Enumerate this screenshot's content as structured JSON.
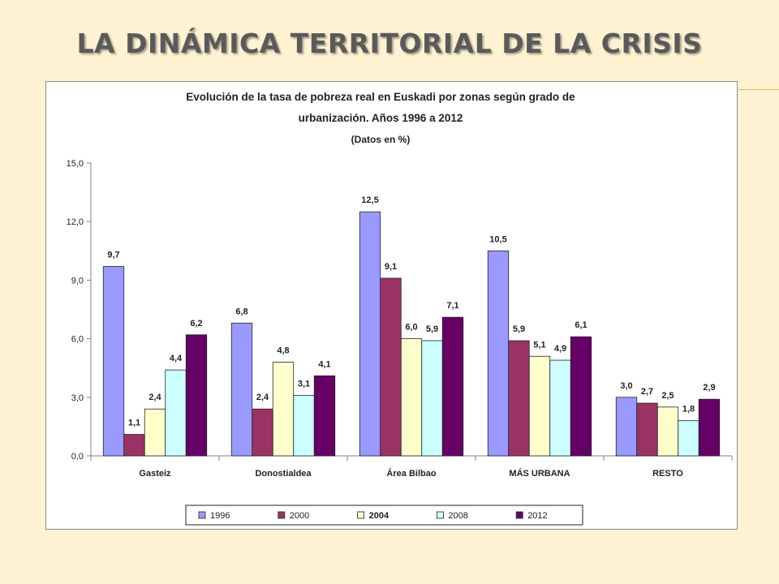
{
  "slide": {
    "title": "LA DINÁMICA TERRITORIAL DE LA CRISIS"
  },
  "colors": {
    "background": "#fdf2d1",
    "accent": "#e7b85a"
  },
  "chart_data": {
    "type": "bar",
    "title_line1": "Evolución de la tasa de pobreza real en Euskadi por zonas según grado de",
    "title_line2": "urbanización. Años 1996 a 2012",
    "subtitle": "(Datos en %)",
    "categories": [
      "Gasteiz",
      "Donostialdea",
      "Área Bilbao",
      "MÁS URBANA",
      "RESTO"
    ],
    "series": [
      {
        "name": "1996",
        "color": "#9999ff",
        "values": [
          9.7,
          6.8,
          12.5,
          10.5,
          3.0
        ]
      },
      {
        "name": "2000",
        "color": "#993366",
        "values": [
          1.1,
          2.4,
          9.1,
          5.9,
          2.7
        ]
      },
      {
        "name": "2004",
        "color": "#ffffcc",
        "values": [
          2.4,
          4.8,
          6.0,
          5.1,
          2.5
        ]
      },
      {
        "name": "2008",
        "color": "#ccffff",
        "values": [
          4.4,
          3.1,
          5.9,
          4.9,
          1.8
        ]
      },
      {
        "name": "2012",
        "color": "#660066",
        "values": [
          6.2,
          4.1,
          7.1,
          6.1,
          2.9
        ]
      }
    ],
    "ylim": [
      0,
      15
    ],
    "yticks": [
      0,
      3,
      6,
      9,
      12,
      15
    ],
    "ytick_labels": [
      "0,0",
      "3,0",
      "6,0",
      "9,0",
      "12,0",
      "15,0"
    ],
    "value_labels": [
      [
        "9,7",
        "6,8",
        "12,5",
        "10,5",
        "3,0"
      ],
      [
        "1,1",
        "2,4",
        "9,1",
        "5,9",
        "2,7"
      ],
      [
        "2,4",
        "4,8",
        "6,0",
        "5,1",
        "2,5"
      ],
      [
        "4,4",
        "3,1",
        "5,9",
        "4,9",
        "1,8"
      ],
      [
        "6,2",
        "4,1",
        "7,1",
        "6,1",
        "2,9"
      ]
    ],
    "legend_position": "bottom",
    "grid": false
  }
}
